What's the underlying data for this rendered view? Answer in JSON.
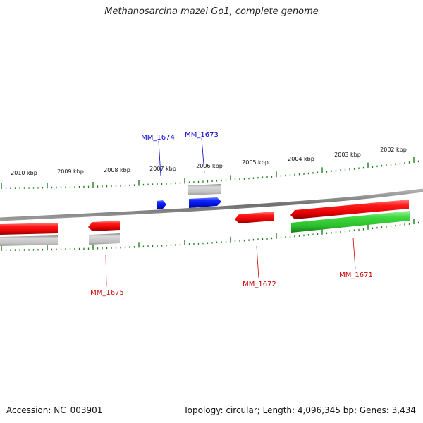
{
  "title": "Methanosarcina mazei Go1, complete genome",
  "footer": {
    "accession": "Accession: NC_003901",
    "summary": "Topology: circular; Length: 4,096,345 bp; Genes: 3,434"
  },
  "ruler_labels": [
    "2010 kbp",
    "2009 kbp",
    "2008 kbp",
    "2007 kbp",
    "2006 kbp",
    "2005 kbp",
    "2004 kbp",
    "2003 kbp",
    "2002 kbp"
  ],
  "genes": [
    {
      "id": "MM_1674",
      "color": "#0000cc"
    },
    {
      "id": "MM_1673",
      "color": "#0000cc"
    },
    {
      "id": "MM_1675",
      "color": "#cc0000"
    },
    {
      "id": "MM_1672",
      "color": "#cc0000"
    },
    {
      "id": "MM_1671",
      "color": "#cc0000"
    }
  ],
  "colors": {
    "backbone": "#8a8a8a",
    "ticks": "#1e7a1e",
    "red_feature": "#ee1111",
    "blue_feature": "#0a14e6",
    "green_feature": "#2ecc2e",
    "grey_feature": "#b3b3b3"
  }
}
